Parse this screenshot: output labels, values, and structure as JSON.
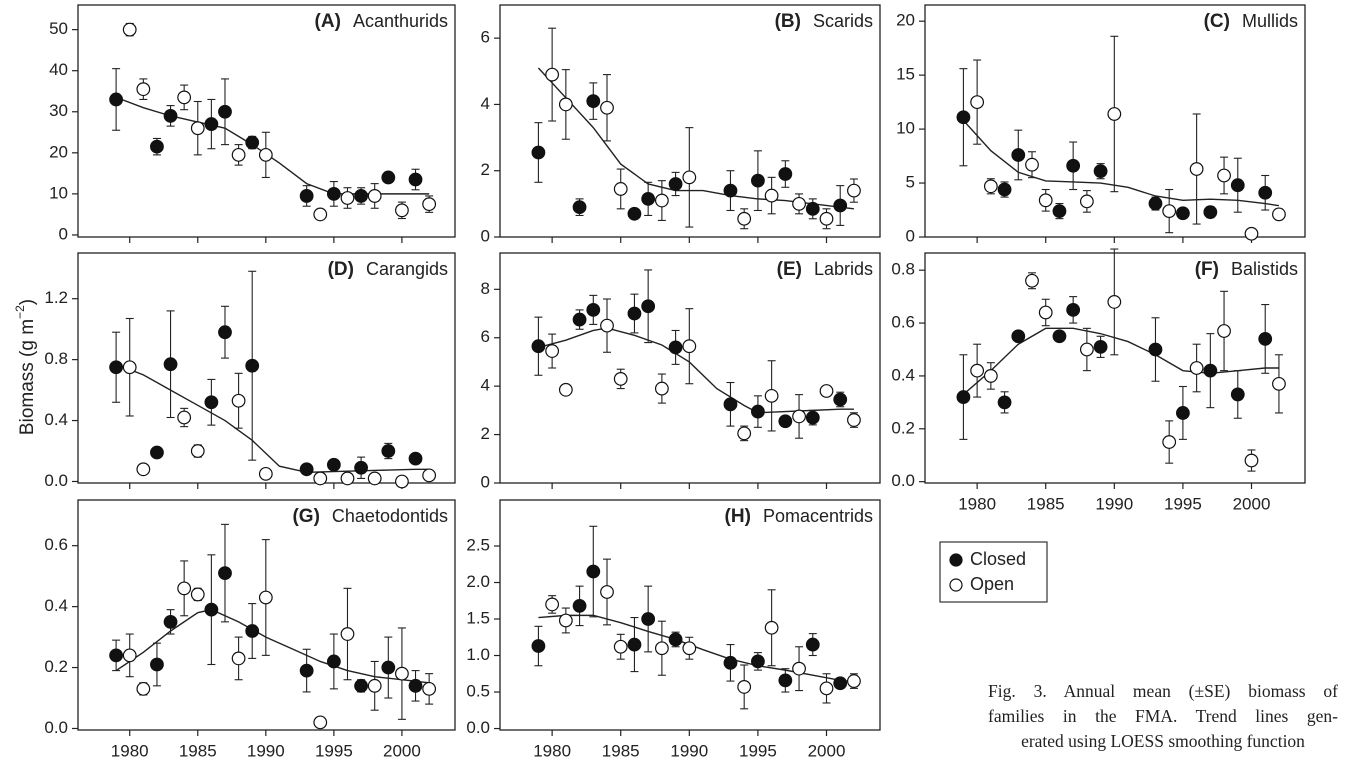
{
  "ylabel": {
    "text": "Biomass (g m",
    "sup": "−2",
    "end": ")"
  },
  "caption": [
    "Fig. 3. Annual mean (±SE) biomass of",
    "families in the FMA. Trend lines gen-",
    "erated using LOESS smoothing function"
  ],
  "chart_data": [
    {
      "type": "scatter",
      "label": "(A)",
      "title": "Acanthurids",
      "xlim": [
        1976.2,
        2003.9
      ],
      "xticks": [
        1980,
        1985,
        1990,
        1995,
        2000
      ],
      "xtick_labels": false,
      "ylim": [
        -0.5,
        56
      ],
      "yticks": [
        0,
        10,
        20,
        30,
        40,
        50
      ],
      "series": [
        {
          "name": "Closed",
          "filled": true,
          "x": [
            1979,
            1982,
            1983,
            1986,
            1987,
            1989,
            1993,
            1995,
            1997,
            1999,
            2001
          ],
          "values": [
            33,
            21.5,
            29,
            27,
            30,
            22.5,
            9.5,
            10,
            9.5,
            14,
            13.5
          ],
          "errors": [
            7.5,
            2,
            2.5,
            6,
            8,
            1.5,
            2.5,
            3,
            2,
            1,
            2.5
          ]
        },
        {
          "name": "Open",
          "filled": false,
          "x": [
            1980,
            1981,
            1984,
            1985,
            1988,
            1990,
            1994,
            1996,
            1998,
            2000,
            2002
          ],
          "values": [
            50,
            35.5,
            33.5,
            26,
            19.5,
            19.5,
            5,
            9,
            9.5,
            6,
            7.5
          ],
          "errors": [
            1.5,
            2.5,
            3,
            6.5,
            2.5,
            5.5,
            1,
            2.5,
            3,
            2,
            2
          ]
        }
      ],
      "trend": {
        "x": [
          1979,
          1981,
          1983,
          1985,
          1987,
          1989,
          1991,
          1993,
          1995,
          1997,
          1999,
          2001,
          2002
        ],
        "values": [
          33.5,
          31,
          29,
          27.5,
          26,
          22,
          17.5,
          12.5,
          10,
          10,
          10,
          10,
          10
        ]
      }
    },
    {
      "type": "scatter",
      "label": "(B)",
      "title": "Scarids",
      "xlim": [
        1976.2,
        2003.9
      ],
      "xticks": [
        1980,
        1985,
        1990,
        1995,
        2000
      ],
      "xtick_labels": false,
      "ylim": [
        0,
        7
      ],
      "yticks": [
        0,
        2,
        4,
        6
      ],
      "series": [
        {
          "filled": true,
          "x": [
            1979,
            1982,
            1983,
            1986,
            1987,
            1989,
            1993,
            1995,
            1997,
            1999,
            2001
          ],
          "values": [
            2.55,
            0.9,
            4.1,
            0.7,
            1.15,
            1.6,
            1.4,
            1.7,
            1.9,
            0.85,
            0.95
          ],
          "errors": [
            0.9,
            0.25,
            0.55,
            0.15,
            0.5,
            0.35,
            0.6,
            0.9,
            0.4,
            0.3,
            0.6
          ]
        },
        {
          "filled": false,
          "x": [
            1980,
            1981,
            1984,
            1985,
            1988,
            1990,
            1994,
            1996,
            1998,
            2000,
            2002
          ],
          "values": [
            4.9,
            4.0,
            3.9,
            1.45,
            1.1,
            1.8,
            0.55,
            1.25,
            1.0,
            0.55,
            1.4
          ],
          "errors": [
            1.4,
            1.05,
            1.0,
            0.6,
            0.6,
            1.5,
            0.3,
            0.55,
            0.3,
            0.3,
            0.35
          ]
        }
      ],
      "trend": {
        "x": [
          1979,
          1981,
          1983,
          1985,
          1987,
          1989,
          1991,
          1993,
          1995,
          1997,
          1999,
          2001,
          2002
        ],
        "values": [
          5.1,
          4.2,
          3.3,
          2.2,
          1.6,
          1.4,
          1.4,
          1.25,
          1.15,
          1.1,
          1.0,
          0.9,
          0.85
        ]
      }
    },
    {
      "type": "scatter",
      "label": "(C)",
      "title": "Mullids",
      "xlim": [
        1976.2,
        2003.9
      ],
      "xticks": [
        1980,
        1985,
        1990,
        1995,
        2000
      ],
      "xtick_labels": false,
      "ylim": [
        0,
        21.5
      ],
      "yticks": [
        0,
        5,
        10,
        15,
        20
      ],
      "series": [
        {
          "filled": true,
          "x": [
            1979,
            1982,
            1983,
            1986,
            1987,
            1989,
            1993,
            1995,
            1997,
            1999,
            2001
          ],
          "values": [
            11.1,
            4.4,
            7.6,
            2.4,
            6.6,
            6.1,
            3.1,
            2.2,
            2.3,
            4.8,
            4.1
          ],
          "errors": [
            4.5,
            0.7,
            2.3,
            0.7,
            2.2,
            0.7,
            0.6,
            0.3,
            0.5,
            2.5,
            1.6
          ]
        },
        {
          "filled": false,
          "x": [
            1980,
            1981,
            1984,
            1985,
            1988,
            1990,
            1994,
            1996,
            1998,
            2000,
            2002
          ],
          "values": [
            12.5,
            4.7,
            6.7,
            3.4,
            3.3,
            11.4,
            2.4,
            6.3,
            5.7,
            0.3,
            2.1
          ],
          "errors": [
            3.9,
            0.7,
            1.2,
            1,
            1,
            7.2,
            2,
            5.1,
            1.7,
            0.2,
            0.5
          ]
        }
      ],
      "trend": {
        "x": [
          1979,
          1981,
          1983,
          1985,
          1987,
          1989,
          1991,
          1993,
          1995,
          1997,
          1999,
          2001,
          2002
        ],
        "values": [
          10.8,
          8,
          6,
          5.2,
          5.1,
          5.0,
          4.6,
          3.8,
          3.4,
          3.5,
          3.4,
          3.1,
          2.9
        ]
      }
    },
    {
      "type": "scatter",
      "label": "(D)",
      "title": "Carangids",
      "xlim": [
        1976.2,
        2003.9
      ],
      "xticks": [
        1980,
        1985,
        1990,
        1995,
        2000
      ],
      "xtick_labels": false,
      "ylim": [
        -0.01,
        1.5
      ],
      "yticks": [
        {
          "value": 0,
          "label": "0.0"
        },
        0.4,
        0.8,
        1.2
      ],
      "series": [
        {
          "filled": true,
          "x": [
            1979,
            1982,
            1983,
            1986,
            1987,
            1989,
            1993,
            1995,
            1997,
            1999,
            2001
          ],
          "values": [
            0.75,
            0.19,
            0.77,
            0.52,
            0.98,
            0.76,
            0.08,
            0.11,
            0.09,
            0.2,
            0.15
          ],
          "errors": [
            0.23,
            0.01,
            0.35,
            0.15,
            0.17,
            0.62,
            0.02,
            0.03,
            0.07,
            0.05,
            0.03
          ]
        },
        {
          "filled": false,
          "x": [
            1980,
            1981,
            1984,
            1985,
            1988,
            1990,
            1994,
            1996,
            1998,
            2000,
            2002
          ],
          "values": [
            0.75,
            0.08,
            0.42,
            0.2,
            0.53,
            0.05,
            0.02,
            0.02,
            0.02,
            0.0,
            0.04
          ],
          "errors": [
            0.32,
            0.02,
            0.06,
            0.04,
            0.18,
            0.02,
            0.02,
            0.02,
            0.02,
            0.005,
            0.03
          ]
        }
      ],
      "trend": {
        "x": [
          1979,
          1981,
          1983,
          1985,
          1987,
          1989,
          1991,
          1993,
          1995,
          1997,
          1999,
          2001,
          2002
        ],
        "values": [
          0.77,
          0.7,
          0.6,
          0.5,
          0.4,
          0.27,
          0.1,
          0.06,
          0.065,
          0.07,
          0.075,
          0.08,
          0.08
        ]
      }
    },
    {
      "type": "scatter",
      "label": "(E)",
      "title": "Labrids",
      "xlim": [
        1976.2,
        2003.9
      ],
      "xticks": [
        1980,
        1985,
        1990,
        1995,
        2000
      ],
      "xtick_labels": false,
      "ylim": [
        0,
        9.5
      ],
      "yticks": [
        0,
        2,
        4,
        6,
        8
      ],
      "series": [
        {
          "filled": true,
          "x": [
            1979,
            1982,
            1983,
            1986,
            1987,
            1989,
            1993,
            1995,
            1997,
            1999,
            2001
          ],
          "values": [
            5.65,
            6.75,
            7.15,
            7.0,
            7.3,
            5.6,
            3.25,
            2.95,
            2.55,
            2.7,
            3.45
          ],
          "errors": [
            1.2,
            0.4,
            0.6,
            0.8,
            1.5,
            0.7,
            0.9,
            0.65,
            0.15,
            0.3,
            0.3
          ]
        },
        {
          "filled": false,
          "x": [
            1980,
            1981,
            1984,
            1985,
            1988,
            1990,
            1994,
            1996,
            1998,
            2000,
            2002
          ],
          "values": [
            5.45,
            3.85,
            6.5,
            4.3,
            3.9,
            5.65,
            2.05,
            3.6,
            2.75,
            3.8,
            2.6
          ],
          "errors": [
            0.7,
            0.15,
            1.1,
            0.4,
            0.6,
            1.55,
            0.3,
            1.45,
            0.9,
            0.15,
            0.3
          ]
        }
      ],
      "trend": {
        "x": [
          1979,
          1981,
          1983,
          1984,
          1986,
          1988,
          1990,
          1992,
          1994,
          1995,
          1997,
          1999,
          2001,
          2002
        ],
        "values": [
          5.6,
          5.9,
          6.3,
          6.4,
          6.1,
          5.7,
          5.0,
          3.9,
          3.2,
          2.9,
          2.95,
          3.0,
          3.05,
          3.05
        ]
      }
    },
    {
      "type": "scatter",
      "label": "(F)",
      "title": "Balistids",
      "xlim": [
        1976.2,
        2003.9
      ],
      "xticks": [
        1980,
        1985,
        1990,
        1995,
        2000
      ],
      "xtick_labels": true,
      "ylim": [
        -0.005,
        0.865
      ],
      "yticks": [
        {
          "value": 0,
          "label": "0.0"
        },
        0.2,
        0.4,
        0.6,
        0.8
      ],
      "series": [
        {
          "filled": true,
          "x": [
            1979,
            1982,
            1983,
            1986,
            1987,
            1989,
            1993,
            1995,
            1997,
            1999,
            2001
          ],
          "values": [
            0.32,
            0.3,
            0.55,
            0.55,
            0.65,
            0.51,
            0.5,
            0.26,
            0.42,
            0.33,
            0.54
          ],
          "errors": [
            0.16,
            0.04,
            0.01,
            0.01,
            0.05,
            0.04,
            0.12,
            0.1,
            0.14,
            0.09,
            0.13
          ]
        },
        {
          "filled": false,
          "x": [
            1980,
            1981,
            1984,
            1985,
            1988,
            1990,
            1994,
            1996,
            1998,
            2000,
            2002
          ],
          "values": [
            0.42,
            0.4,
            0.76,
            0.64,
            0.5,
            0.68,
            0.15,
            0.43,
            0.57,
            0.08,
            0.37
          ],
          "errors": [
            0.1,
            0.05,
            0.03,
            0.05,
            0.08,
            0.2,
            0.08,
            0.09,
            0.15,
            0.04,
            0.11
          ]
        }
      ],
      "trend": {
        "x": [
          1979,
          1981,
          1983,
          1985,
          1987,
          1989,
          1991,
          1993,
          1995,
          1997,
          1999,
          2001,
          2002
        ],
        "values": [
          0.33,
          0.42,
          0.52,
          0.58,
          0.58,
          0.56,
          0.53,
          0.48,
          0.42,
          0.41,
          0.42,
          0.43,
          0.43
        ]
      }
    },
    {
      "type": "scatter",
      "label": "(G)",
      "title": "Chaetodontids",
      "xlim": [
        1976.2,
        2003.9
      ],
      "xticks": [
        1980,
        1985,
        1990,
        1995,
        2000
      ],
      "xtick_labels": true,
      "ylim": [
        -0.005,
        0.75
      ],
      "yticks": [
        {
          "value": 0,
          "label": "0.0"
        },
        0.2,
        0.4,
        0.6
      ],
      "series": [
        {
          "filled": true,
          "x": [
            1979,
            1982,
            1983,
            1986,
            1987,
            1989,
            1993,
            1995,
            1997,
            1999,
            2001
          ],
          "values": [
            0.24,
            0.21,
            0.35,
            0.39,
            0.51,
            0.32,
            0.19,
            0.22,
            0.14,
            0.2,
            0.14
          ],
          "errors": [
            0.05,
            0.07,
            0.04,
            0.18,
            0.16,
            0.09,
            0.07,
            0.09,
            0.02,
            0.1,
            0.05
          ]
        },
        {
          "filled": false,
          "x": [
            1980,
            1981,
            1984,
            1985,
            1988,
            1990,
            1994,
            1996,
            1998,
            2000,
            2002
          ],
          "values": [
            0.24,
            0.13,
            0.46,
            0.44,
            0.23,
            0.43,
            0.02,
            0.31,
            0.14,
            0.18,
            0.13
          ],
          "errors": [
            0.07,
            0.02,
            0.09,
            0.02,
            0.07,
            0.19,
            0.01,
            0.15,
            0.08,
            0.15,
            0.05
          ]
        }
      ],
      "trend": {
        "x": [
          1979,
          1981,
          1983,
          1985,
          1986,
          1988,
          1990,
          1992,
          1994,
          1996,
          1998,
          2000,
          2002
        ],
        "values": [
          0.19,
          0.25,
          0.32,
          0.38,
          0.39,
          0.35,
          0.3,
          0.26,
          0.22,
          0.19,
          0.17,
          0.16,
          0.15
        ]
      }
    },
    {
      "type": "scatter",
      "label": "(H)",
      "title": "Pomacentrids",
      "xlim": [
        1976.2,
        2003.9
      ],
      "xticks": [
        1980,
        1985,
        1990,
        1995,
        2000
      ],
      "xtick_labels": true,
      "ylim": [
        -0.02,
        3.13
      ],
      "yticks": [
        {
          "value": 0,
          "label": "0.0"
        },
        0.5,
        {
          "value": 1,
          "label": "1.0"
        },
        1.5,
        {
          "value": 2,
          "label": "2.0"
        },
        2.5
      ],
      "series": [
        {
          "filled": true,
          "x": [
            1979,
            1982,
            1983,
            1986,
            1987,
            1989,
            1993,
            1995,
            1997,
            1999,
            2001
          ],
          "values": [
            1.13,
            1.68,
            2.15,
            1.15,
            1.5,
            1.22,
            0.9,
            0.92,
            0.66,
            1.15,
            0.62
          ],
          "errors": [
            0.27,
            0.27,
            0.62,
            0.37,
            0.45,
            0.1,
            0.25,
            0.12,
            0.16,
            0.15,
            0.05
          ]
        },
        {
          "filled": false,
          "x": [
            1980,
            1981,
            1984,
            1985,
            1988,
            1990,
            1994,
            1996,
            1998,
            2000,
            2002
          ],
          "values": [
            1.7,
            1.48,
            1.87,
            1.12,
            1.1,
            1.1,
            0.57,
            1.38,
            0.82,
            0.55,
            0.65
          ],
          "errors": [
            0.12,
            0.17,
            0.45,
            0.17,
            0.37,
            0.15,
            0.3,
            0.52,
            0.3,
            0.2,
            0.1
          ]
        }
      ],
      "trend": {
        "x": [
          1979,
          1981,
          1983,
          1985,
          1987,
          1989,
          1991,
          1993,
          1995,
          1997,
          1999,
          2001,
          2002
        ],
        "values": [
          1.52,
          1.55,
          1.55,
          1.45,
          1.33,
          1.22,
          1.08,
          0.95,
          0.86,
          0.8,
          0.73,
          0.66,
          0.64
        ]
      }
    }
  ]
}
